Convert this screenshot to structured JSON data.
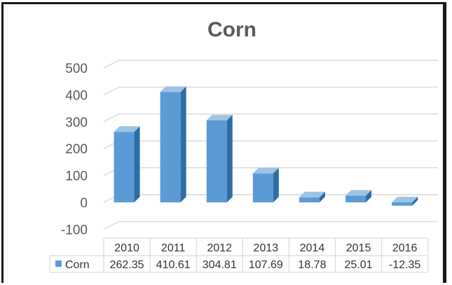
{
  "chart_data": {
    "type": "bar",
    "title": "Corn",
    "categories": [
      "2010",
      "2011",
      "2012",
      "2013",
      "2014",
      "2015",
      "2016"
    ],
    "series": [
      {
        "name": "Corn",
        "values": [
          262.35,
          410.61,
          304.81,
          107.69,
          18.78,
          25.01,
          -12.35
        ]
      }
    ],
    "value_labels": [
      "262.35",
      "410.61",
      "304.81",
      "107.69",
      "18.78",
      "25.01",
      "-12.35"
    ],
    "y_ticks": [
      "500",
      "400",
      "300",
      "200",
      "100",
      "0",
      "-100"
    ],
    "ylim": [
      -100,
      500
    ],
    "grid": true,
    "legend": "data-table",
    "style": "3d-column",
    "colors": {
      "bar_front": "#5b9bd5",
      "bar_side": "#2e6ca4",
      "bar_top": "#9dc3e6",
      "grid": "#d9d9d9"
    }
  }
}
